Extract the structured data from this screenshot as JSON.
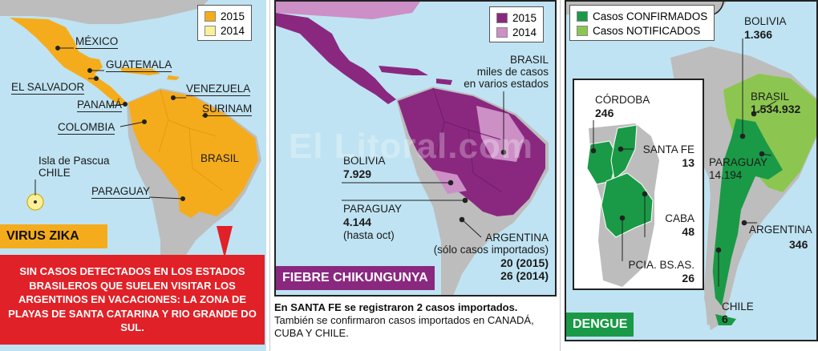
{
  "zika": {
    "title": "VIRUS ZIKA",
    "legend": [
      {
        "label": "2015",
        "color": "#f5ac1c"
      },
      {
        "label": "2014",
        "color": "#fbf09a"
      }
    ],
    "labels": {
      "mexico": "MÉXICO",
      "guatemala": "GUATEMALA",
      "el_salvador": "EL SALVADOR",
      "venezuela": "VENEZUELA",
      "panama": "PANAMÁ",
      "surinam": "SURINAM",
      "colombia": "COLOMBIA",
      "isla_line1": "Isla de Pascua",
      "isla_line2": "CHILE",
      "brasil": "BRASIL",
      "paraguay": "PARAGUAY"
    },
    "callout": "SIN CASOS DETECTADOS EN LOS ESTADOS BRASILEROS QUE SUELEN VISITAR LOS ARGENTINOS EN VACACIONES: LA ZONA DE PLAYAS DE SANTA CATARINA Y RIO GRANDE DO SUL."
  },
  "chik": {
    "title": "FIEBRE CHIKUNGUNYA",
    "legend": [
      {
        "label": "2015",
        "color": "#8a2880"
      },
      {
        "label": "2014",
        "color": "#cc8fc6"
      }
    ],
    "labels": {
      "brasil_name": "BRASIL",
      "brasil_l2": "miles de casos",
      "brasil_l3": "en varios estados",
      "bolivia_name": "BOLIVIA",
      "bolivia_num": "7.929",
      "paraguay_name": "PARAGUAY",
      "paraguay_num": "4.144",
      "paraguay_note": "(hasta oct)",
      "argentina_name": "ARGENTINA",
      "argentina_note": "(sólo casos importados)",
      "argentina_2015": "20 (2015)",
      "argentina_2014": "26 (2014)"
    },
    "note_bold": "En SANTA FE se registraron 2 casos importados.",
    "note_rest": "También se confirmaron casos importados en CANADÁ, CUBA Y CHILE."
  },
  "dengue": {
    "title": "DENGUE",
    "legend": [
      {
        "label": "Casos CONFIRMADOS",
        "color": "#1a9a46"
      },
      {
        "label": "Casos NOTIFICADOS",
        "color": "#8cc650"
      }
    ],
    "labels": {
      "bolivia_name": "BOLIVIA",
      "bolivia_num": "1.366",
      "brasil_name": "BRASIL",
      "brasil_num": "1.534.932",
      "paraguay_name": "PARAGUAY",
      "paraguay_num": "14.194",
      "argentina_name": "ARGENTINA",
      "argentina_num": "346",
      "chile_name": "CHILE",
      "chile_num": "6",
      "cordoba_name": "CÓRDOBA",
      "cordoba_num": "246",
      "santafe_name": "SANTA FE",
      "santafe_num": "13",
      "caba_name": "CABA",
      "caba_num": "48",
      "pcia_name": "PCIA. BS.AS.",
      "pcia_num": "26"
    }
  },
  "watermark": "El Litoral.com"
}
